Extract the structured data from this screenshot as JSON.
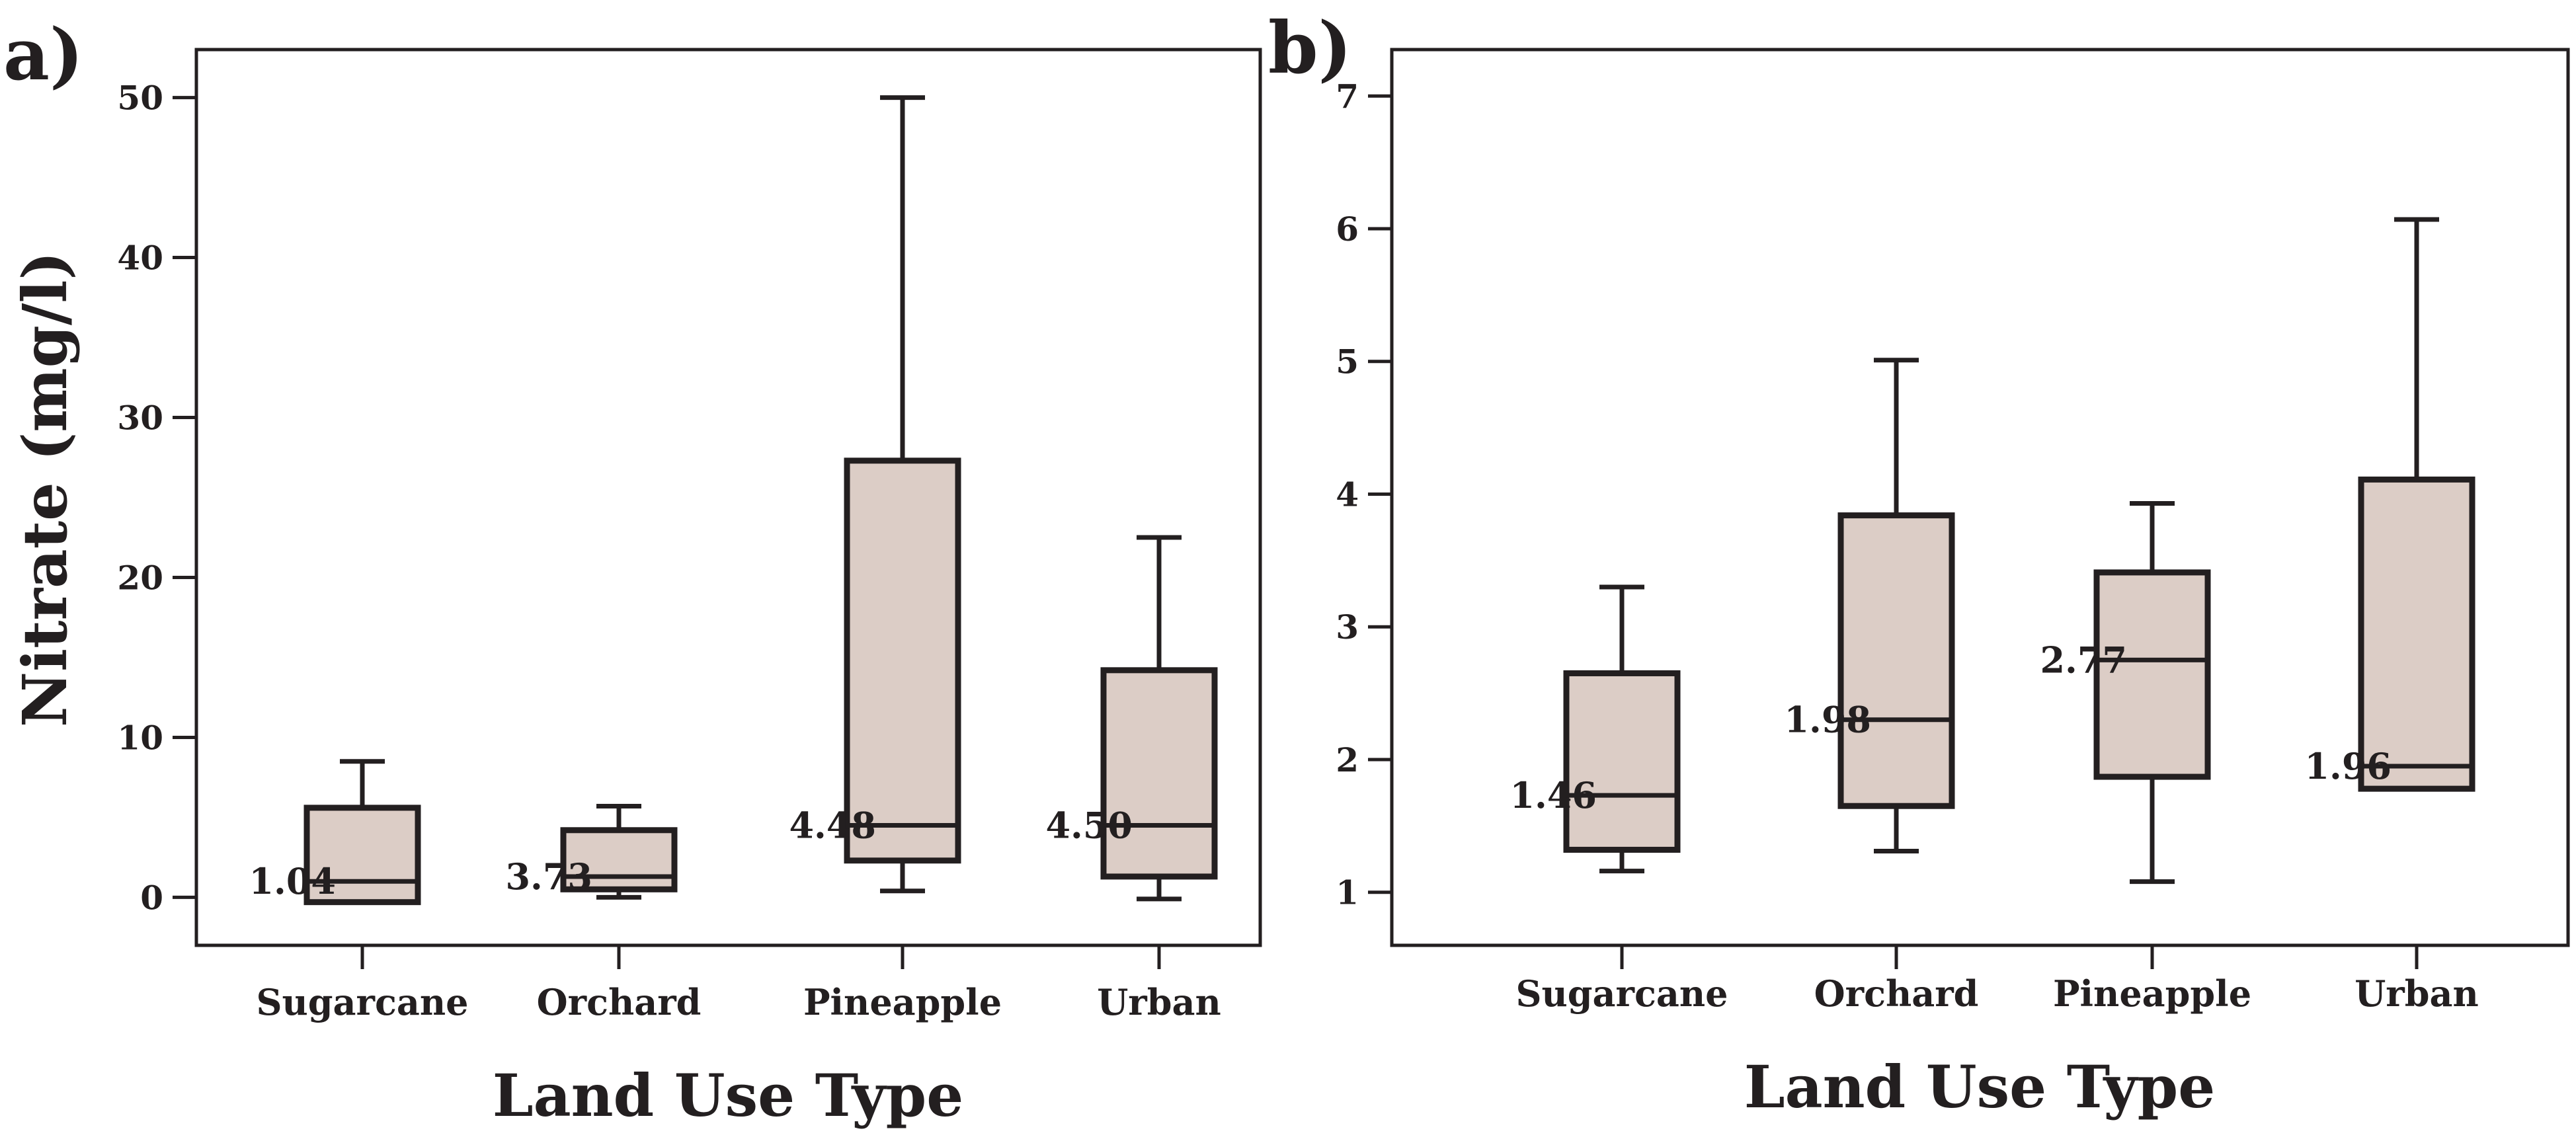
{
  "chart_data": [
    {
      "type": "box",
      "panel_label": "a)",
      "title": "",
      "xlabel": "Land Use Type",
      "ylabel": "Nitrate (mg/l)",
      "ylim": [
        -3,
        53
      ],
      "yticks": [
        0,
        10,
        20,
        30,
        40,
        50
      ],
      "categories": [
        "Sugarcane",
        "Orchard",
        "Pineapple",
        "Urban"
      ],
      "boxes": [
        {
          "category": "Sugarcane",
          "whisker_low": -0.3,
          "q1": -0.3,
          "median": 1.0,
          "q3": 5.6,
          "whisker_high": 8.5,
          "annotation": "1.04"
        },
        {
          "category": "Orchard",
          "whisker_low": 0.0,
          "q1": 0.5,
          "median": 1.3,
          "q3": 4.2,
          "whisker_high": 5.7,
          "annotation": "3.73"
        },
        {
          "category": "Pineapple",
          "whisker_low": 0.4,
          "q1": 2.3,
          "median": 4.5,
          "q3": 27.3,
          "whisker_high": 50.0,
          "annotation": "4.48"
        },
        {
          "category": "Urban",
          "whisker_low": -0.1,
          "q1": 1.3,
          "median": 4.5,
          "q3": 14.2,
          "whisker_high": 22.5,
          "annotation": "4.50"
        }
      ]
    },
    {
      "type": "box",
      "panel_label": "b)",
      "title": "",
      "xlabel": "Land Use Type",
      "ylabel": "",
      "ylim": [
        0.6,
        7.35
      ],
      "yticks": [
        1,
        2,
        3,
        4,
        5,
        6,
        7
      ],
      "categories": [
        "Sugarcane",
        "Orchard",
        "Pineapple",
        "Urban"
      ],
      "boxes": [
        {
          "category": "Sugarcane",
          "whisker_low": 1.16,
          "q1": 1.32,
          "median": 1.73,
          "q3": 2.65,
          "whisker_high": 3.3,
          "annotation": "1.46"
        },
        {
          "category": "Orchard",
          "whisker_low": 1.31,
          "q1": 1.65,
          "median": 2.3,
          "q3": 3.84,
          "whisker_high": 5.01,
          "annotation": "1.98"
        },
        {
          "category": "Pineapple",
          "whisker_low": 1.08,
          "q1": 1.87,
          "median": 2.75,
          "q3": 3.41,
          "whisker_high": 3.93,
          "annotation": "2.77"
        },
        {
          "category": "Urban",
          "whisker_low": 1.78,
          "q1": 1.78,
          "median": 1.95,
          "q3": 4.11,
          "whisker_high": 6.07,
          "annotation": "1.96"
        }
      ]
    }
  ],
  "colors": {
    "box_fill": "#dccdc6",
    "line": "#231f20",
    "background": "#ffffff"
  }
}
